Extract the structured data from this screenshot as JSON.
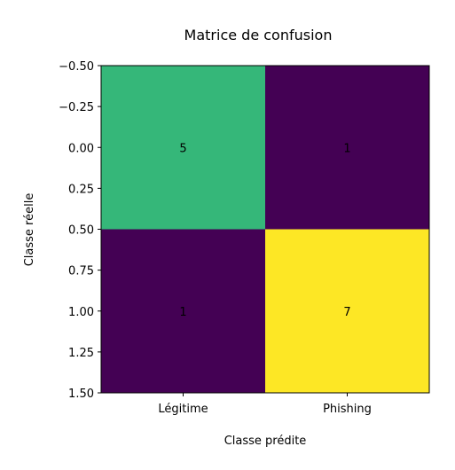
{
  "chart_data": {
    "type": "heatmap",
    "title": "Matrice de confusion",
    "xlabel": "Classe prédite",
    "ylabel": "Classe réelle",
    "x_tick_labels": [
      "Légitime",
      "Phishing"
    ],
    "y_tick_labels": [
      "−0.50",
      "−0.25",
      "0.00",
      "0.25",
      "0.50",
      "0.75",
      "1.00",
      "1.25",
      "1.50"
    ],
    "y_tick_values": [
      -0.5,
      -0.25,
      0,
      0.25,
      0.5,
      0.75,
      1.0,
      1.25,
      1.5
    ],
    "ylim": [
      -0.5,
      1.5
    ],
    "values": [
      [
        5,
        1
      ],
      [
        1,
        7
      ]
    ],
    "colormap": "viridis",
    "cell_colors": [
      [
        "#35b779",
        "#440154"
      ],
      [
        "#440154",
        "#fde725"
      ]
    ]
  }
}
